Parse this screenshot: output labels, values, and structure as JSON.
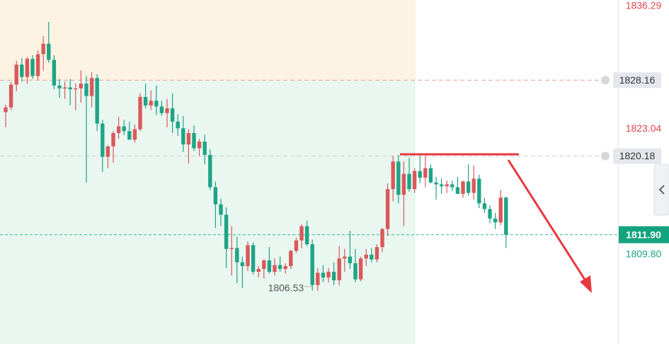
{
  "chart_data": {
    "type": "candlestick",
    "open": [
      1824.8,
      1825.3,
      1827.7,
      1829.8,
      1828.5,
      1830.4,
      1828.6,
      1830.9,
      1832.0,
      1830.3,
      1827.6,
      1827.3,
      1827.4,
      1827.2,
      1827.3,
      1827.8,
      1826.5,
      1828.4,
      1823.6,
      1820.1,
      1821.2,
      1822.6,
      1823.3,
      1822.8,
      1821.9,
      1823.0,
      1826.4,
      1825.5,
      1826.0,
      1825.4,
      1824.7,
      1825.2,
      1823.8,
      1823.1,
      1821.4,
      1822.6,
      1821.0,
      1821.7,
      1820.3,
      1816.9,
      1815.1,
      1814.0,
      1810.4,
      1810.5,
      1809.0,
      1808.6,
      1810.8,
      1808.0,
      1808.3,
      1809.2,
      1808.0,
      1808.7,
      1808.3,
      1808.6,
      1810.2,
      1811.3,
      1812.8,
      1810.9,
      1806.6,
      1807.9,
      1807.4,
      1808.0,
      1807.1,
      1809.4,
      1809.6,
      1808.9,
      1807.2,
      1809.4,
      1809.8,
      1809.3,
      1810.6,
      1812.5,
      1816.7,
      1819.6,
      1816.1,
      1818.3,
      1816.7,
      1818.6,
      1817.9,
      1818.9,
      1817.4,
      1817.2,
      1817.0,
      1817.2,
      1816.9,
      1816.2,
      1817.5,
      1816.3,
      1817.8,
      1815.2,
      1814.6,
      1813.6,
      1813.2,
      1815.8
    ],
    "high": [
      1825.6,
      1828.0,
      1830.2,
      1830.5,
      1830.6,
      1830.8,
      1831.3,
      1832.8,
      1834.3,
      1830.8,
      1828.3,
      1828.0,
      1828.3,
      1827.8,
      1829.2,
      1828.6,
      1829.0,
      1828.8,
      1824.0,
      1821.3,
      1822.8,
      1824.3,
      1824.0,
      1823.8,
      1823.5,
      1826.8,
      1827.8,
      1827.1,
      1827.6,
      1826.0,
      1826.2,
      1826.8,
      1824.6,
      1824.4,
      1823.0,
      1823.4,
      1822.0,
      1822.4,
      1820.9,
      1817.5,
      1815.7,
      1814.8,
      1812.8,
      1811.7,
      1809.6,
      1811.2,
      1811.1,
      1808.6,
      1809.3,
      1810.6,
      1809.4,
      1809.6,
      1808.9,
      1810.3,
      1811.6,
      1813.0,
      1813.4,
      1811.4,
      1808.4,
      1808.7,
      1808.4,
      1809.0,
      1810.7,
      1810.4,
      1812.3,
      1810.4,
      1809.6,
      1810.4,
      1810.5,
      1810.9,
      1812.6,
      1817.3,
      1820.2,
      1820.3,
      1819.6,
      1820.0,
      1818.9,
      1820.2,
      1820.2,
      1819.3,
      1818.0,
      1817.8,
      1817.6,
      1817.6,
      1818.0,
      1817.6,
      1819.3,
      1819.2,
      1818.2,
      1815.8,
      1815.0,
      1814.2,
      1816.6,
      1815.9
    ],
    "low": [
      1823.2,
      1825.0,
      1827.0,
      1828.0,
      1827.8,
      1828.3,
      1828.2,
      1829.2,
      1830.0,
      1827.2,
      1826.3,
      1826.2,
      1825.5,
      1825.0,
      1825.8,
      1817.4,
      1825.3,
      1822.8,
      1818.5,
      1818.9,
      1819.5,
      1822.0,
      1822.4,
      1821.9,
      1821.6,
      1822.8,
      1825.2,
      1825.0,
      1824.5,
      1824.4,
      1823.2,
      1822.6,
      1822.3,
      1820.6,
      1819.4,
      1820.7,
      1820.2,
      1819.3,
      1816.6,
      1812.6,
      1812.8,
      1808.4,
      1807.6,
      1806.8,
      1806.3,
      1808.1,
      1807.7,
      1807.4,
      1807.3,
      1807.8,
      1807.6,
      1808.0,
      1807.8,
      1808.3,
      1810.0,
      1810.5,
      1810.7,
      1806.0,
      1806.0,
      1806.9,
      1806.9,
      1806.6,
      1806.6,
      1808.0,
      1808.3,
      1806.9,
      1807.0,
      1808.6,
      1809.0,
      1809.0,
      1810.1,
      1811.8,
      1815.4,
      1815.2,
      1812.8,
      1816.4,
      1816.3,
      1817.3,
      1816.9,
      1817.3,
      1815.6,
      1816.2,
      1816.3,
      1816.5,
      1816.2,
      1815.8,
      1816.0,
      1815.6,
      1814.7,
      1814.2,
      1813.1,
      1812.5,
      1812.9,
      1810.5
    ],
    "close": [
      1825.3,
      1827.7,
      1829.8,
      1828.5,
      1830.4,
      1828.6,
      1830.9,
      1832.0,
      1830.3,
      1827.6,
      1827.3,
      1827.4,
      1827.2,
      1827.3,
      1827.8,
      1826.5,
      1828.4,
      1823.6,
      1820.1,
      1821.2,
      1822.6,
      1823.3,
      1822.8,
      1821.9,
      1823.0,
      1826.4,
      1825.5,
      1826.0,
      1825.4,
      1824.7,
      1825.2,
      1823.8,
      1823.1,
      1821.4,
      1822.6,
      1821.0,
      1821.7,
      1820.3,
      1816.9,
      1815.1,
      1814.0,
      1810.4,
      1810.5,
      1809.0,
      1808.6,
      1810.8,
      1808.0,
      1808.3,
      1809.2,
      1808.0,
      1808.7,
      1808.3,
      1808.6,
      1810.2,
      1811.3,
      1812.8,
      1810.9,
      1806.6,
      1807.9,
      1807.4,
      1808.0,
      1807.1,
      1809.4,
      1809.6,
      1808.9,
      1807.2,
      1809.4,
      1809.8,
      1809.3,
      1810.6,
      1812.5,
      1816.7,
      1819.6,
      1816.1,
      1818.3,
      1816.7,
      1818.6,
      1817.9,
      1818.9,
      1817.4,
      1817.2,
      1817.0,
      1817.2,
      1816.9,
      1816.2,
      1817.5,
      1816.3,
      1817.8,
      1815.2,
      1814.6,
      1813.6,
      1813.2,
      1815.8,
      1811.9
    ],
    "up_color": "#d9585b",
    "down_color": "#1ea486",
    "ylim": [
      1800.4,
      1836.6
    ],
    "yticks": [
      1836.29,
      1823.04,
      {
        "value": 1809.8,
        "label": "1809.80"
      }
    ],
    "ytick_colors": [
      "#e0474c",
      "#e0474c",
      "#1ea486"
    ],
    "price_lines": [
      1828.16,
      1820.18
    ],
    "last_price": {
      "value": 1811.9,
      "label": "1811.90"
    },
    "low_marker": 1806.53
  }
}
